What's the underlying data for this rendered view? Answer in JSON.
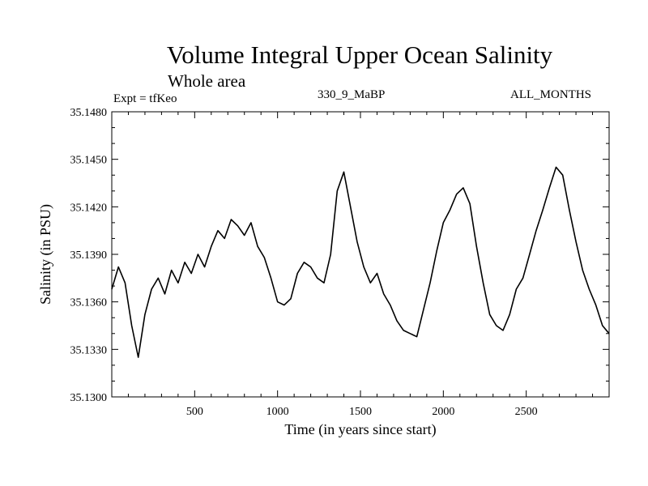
{
  "header": {
    "title": "Volume Integral Upper Ocean Salinity",
    "subtitle": "Whole area",
    "expt": "Expt = tfKeo",
    "run_id": "330_9_MaBP",
    "months": "ALL_MONTHS"
  },
  "colors": {
    "line": "#000000",
    "background": "#ffffff"
  },
  "chart_data": {
    "type": "line",
    "title": "Volume Integral Upper Ocean Salinity",
    "subtitle": "Whole area",
    "xlabel": "Time (in years since start)",
    "ylabel": "Salinity (in PSU)",
    "xlim": [
      0,
      3000
    ],
    "ylim": [
      35.13,
      35.148
    ],
    "xticks": [
      500,
      1000,
      1500,
      2000,
      2500
    ],
    "xtick_labels": [
      "500",
      "1000",
      "1500",
      "2000",
      "2500"
    ],
    "yticks": [
      35.13,
      35.133,
      35.136,
      35.139,
      35.142,
      35.145,
      35.148
    ],
    "ytick_labels": [
      "35.1300",
      "35.1330",
      "35.1360",
      "35.1390",
      "35.1420",
      "35.1450",
      "35.1480"
    ],
    "grid": false,
    "legend": "none",
    "series": [
      {
        "x": [
          0,
          40,
          80,
          120,
          160,
          200,
          240,
          280,
          320,
          360,
          400,
          440,
          480,
          520,
          560,
          600,
          640,
          680,
          720,
          760,
          800,
          840,
          880,
          920,
          960,
          1000,
          1040,
          1080,
          1120,
          1160,
          1200,
          1240,
          1280,
          1320,
          1360,
          1400,
          1440,
          1480,
          1520,
          1560,
          1600,
          1640,
          1680,
          1720,
          1760,
          1800,
          1840,
          1880,
          1920,
          1960,
          2000,
          2040,
          2080,
          2120,
          2160,
          2200,
          2240,
          2280,
          2320,
          2360,
          2400,
          2440,
          2480,
          2520,
          2560,
          2600,
          2640,
          2680,
          2720,
          2760,
          2800,
          2840,
          2880,
          2920,
          2960,
          3000
        ],
        "values": [
          35.1368,
          35.1382,
          35.1372,
          35.1345,
          35.1325,
          35.1352,
          35.1368,
          35.1375,
          35.1365,
          35.138,
          35.1372,
          35.1385,
          35.1378,
          35.139,
          35.1382,
          35.1395,
          35.1405,
          35.14,
          35.1412,
          35.1408,
          35.1402,
          35.141,
          35.1395,
          35.1388,
          35.1375,
          35.136,
          35.1358,
          35.1362,
          35.1378,
          35.1385,
          35.1382,
          35.1375,
          35.1372,
          35.139,
          35.143,
          35.1442,
          35.142,
          35.1398,
          35.1382,
          35.1372,
          35.1378,
          35.1365,
          35.1358,
          35.1348,
          35.1342,
          35.134,
          35.1338,
          35.1355,
          35.1372,
          35.1392,
          35.141,
          35.1418,
          35.1428,
          35.1432,
          35.1422,
          35.1395,
          35.1372,
          35.1352,
          35.1345,
          35.1342,
          35.1352,
          35.1368,
          35.1375,
          35.139,
          35.1405,
          35.1418,
          35.1432,
          35.1445,
          35.144,
          35.1418,
          35.1398,
          35.138,
          35.1368,
          35.1358,
          35.1345,
          35.134
        ]
      }
    ]
  }
}
